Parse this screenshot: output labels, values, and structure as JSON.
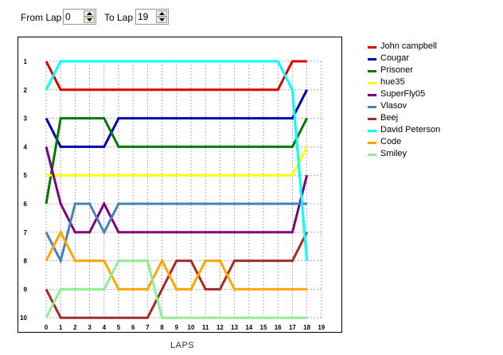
{
  "controls": {
    "from_label": "From Lap",
    "from_value": "0",
    "to_label": "To Lap",
    "to_value": "19"
  },
  "chart_data": {
    "type": "line",
    "xlabel": "LAPS",
    "x": [
      0,
      1,
      2,
      3,
      4,
      5,
      6,
      7,
      8,
      9,
      10,
      11,
      12,
      13,
      14,
      15,
      16,
      17,
      18
    ],
    "x_ticks": [
      0,
      1,
      2,
      3,
      4,
      5,
      6,
      7,
      8,
      9,
      10,
      11,
      12,
      13,
      14,
      15,
      16,
      17,
      18,
      19
    ],
    "y_ticks": [
      1,
      2,
      3,
      4,
      5,
      6,
      7,
      8,
      9,
      10
    ],
    "xlim": [
      0,
      19
    ],
    "ylim": [
      1,
      10
    ],
    "y_inverted": true,
    "grid": true,
    "legend_position": "right",
    "series": [
      {
        "name": "John campbell",
        "color": "#e00000",
        "values": [
          1,
          2,
          2,
          2,
          2,
          2,
          2,
          2,
          2,
          2,
          2,
          2,
          2,
          2,
          2,
          2,
          2,
          1,
          1
        ]
      },
      {
        "name": "Cougar",
        "color": "#0000b0",
        "values": [
          3,
          4,
          4,
          4,
          4,
          3,
          3,
          3,
          3,
          3,
          3,
          3,
          3,
          3,
          3,
          3,
          3,
          3,
          2
        ]
      },
      {
        "name": "Prisoner",
        "color": "#007a00",
        "values": [
          6,
          3,
          3,
          3,
          3,
          4,
          4,
          4,
          4,
          4,
          4,
          4,
          4,
          4,
          4,
          4,
          4,
          4,
          3
        ]
      },
      {
        "name": "hue35",
        "color": "#ffff00",
        "values": [
          5,
          5,
          5,
          5,
          5,
          5,
          5,
          5,
          5,
          5,
          5,
          5,
          5,
          5,
          5,
          5,
          5,
          5,
          4
        ]
      },
      {
        "name": "SuperFly05",
        "color": "#800080",
        "values": [
          4,
          6,
          7,
          7,
          6,
          7,
          7,
          7,
          7,
          7,
          7,
          7,
          7,
          7,
          7,
          7,
          7,
          7,
          5
        ]
      },
      {
        "name": "Vlasov",
        "color": "#4682b4",
        "values": [
          7,
          8,
          6,
          6,
          7,
          6,
          6,
          6,
          6,
          6,
          6,
          6,
          6,
          6,
          6,
          6,
          6,
          6,
          6
        ]
      },
      {
        "name": "Beej",
        "color": "#a52a2a",
        "values": [
          9,
          10,
          10,
          10,
          10,
          10,
          10,
          10,
          9,
          8,
          8,
          9,
          9,
          8,
          8,
          8,
          8,
          8,
          7
        ]
      },
      {
        "name": "David Peterson",
        "color": "#00ffff",
        "values": [
          2,
          1,
          1,
          1,
          1,
          1,
          1,
          1,
          1,
          1,
          1,
          1,
          1,
          1,
          1,
          1,
          1,
          2,
          8
        ]
      },
      {
        "name": "Code",
        "color": "#ffa500",
        "values": [
          8,
          7,
          8,
          8,
          8,
          9,
          9,
          9,
          8,
          9,
          9,
          8,
          8,
          9,
          9,
          9,
          9,
          9,
          9
        ]
      },
      {
        "name": "Smiley",
        "color": "#90ee90",
        "values": [
          10,
          9,
          9,
          9,
          9,
          8,
          8,
          8,
          10,
          10,
          10,
          10,
          10,
          10,
          10,
          10,
          10,
          10,
          10
        ]
      }
    ]
  }
}
